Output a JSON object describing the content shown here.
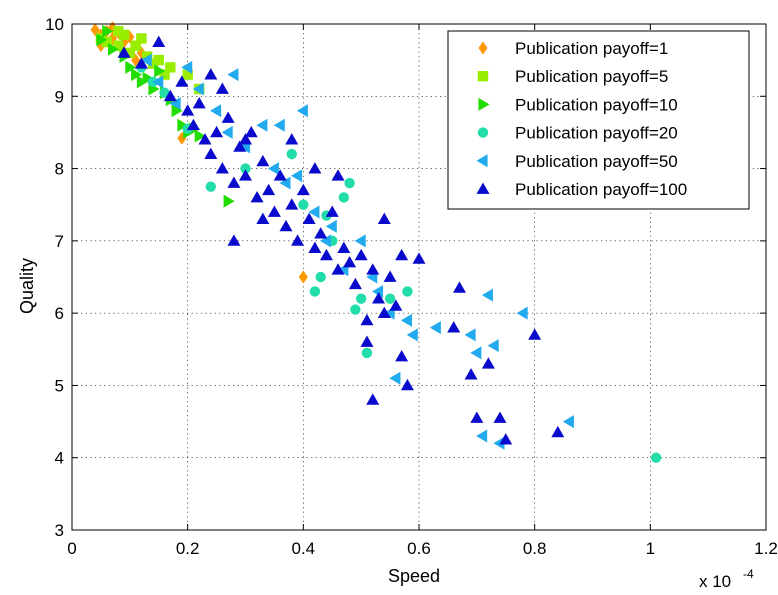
{
  "chart_data": {
    "type": "scatter",
    "xlabel": "Speed",
    "ylabel": "Quality",
    "x_multiplier_label": "x 10",
    "x_multiplier_exp": "-4",
    "xlim": [
      0,
      1.2
    ],
    "ylim": [
      3,
      10
    ],
    "x_ticks": [
      "0",
      "0.2",
      "0.4",
      "0.6",
      "0.8",
      "1",
      "1.2"
    ],
    "y_ticks": [
      "3",
      "4",
      "5",
      "6",
      "7",
      "8",
      "9",
      "10"
    ],
    "grid": true,
    "legend_position": "top-right",
    "series": [
      {
        "name": "Publication payoff=1",
        "marker": "diamond",
        "color": "#ff9900",
        "points": [
          [
            0.04,
            9.92
          ],
          [
            0.05,
            9.85
          ],
          [
            0.06,
            9.9
          ],
          [
            0.07,
            9.8
          ],
          [
            0.08,
            9.88
          ],
          [
            0.09,
            9.75
          ],
          [
            0.1,
            9.82
          ],
          [
            0.05,
            9.7
          ],
          [
            0.12,
            9.6
          ],
          [
            0.19,
            8.42
          ],
          [
            0.4,
            6.5
          ],
          [
            0.07,
            9.95
          ],
          [
            0.11,
            9.5
          ]
        ]
      },
      {
        "name": "Publication payoff=5",
        "marker": "square",
        "color": "#99ee00",
        "points": [
          [
            0.05,
            9.8
          ],
          [
            0.06,
            9.75
          ],
          [
            0.08,
            9.7
          ],
          [
            0.09,
            9.85
          ],
          [
            0.1,
            9.6
          ],
          [
            0.11,
            9.7
          ],
          [
            0.13,
            9.55
          ],
          [
            0.14,
            9.45
          ],
          [
            0.15,
            9.5
          ],
          [
            0.17,
            9.4
          ],
          [
            0.2,
            9.3
          ],
          [
            0.22,
            9.1
          ],
          [
            0.08,
            9.9
          ],
          [
            0.12,
            9.8
          ],
          [
            0.16,
            9.3
          ]
        ]
      },
      {
        "name": "Publication payoff=10",
        "marker": "triangle-right",
        "color": "#22dd00",
        "points": [
          [
            0.05,
            9.78
          ],
          [
            0.07,
            9.65
          ],
          [
            0.09,
            9.55
          ],
          [
            0.1,
            9.4
          ],
          [
            0.11,
            9.3
          ],
          [
            0.12,
            9.2
          ],
          [
            0.13,
            9.25
          ],
          [
            0.14,
            9.1
          ],
          [
            0.15,
            9.35
          ],
          [
            0.16,
            9.05
          ],
          [
            0.17,
            8.95
          ],
          [
            0.18,
            8.8
          ],
          [
            0.19,
            8.6
          ],
          [
            0.2,
            8.5
          ],
          [
            0.21,
            8.55
          ],
          [
            0.22,
            8.45
          ],
          [
            0.27,
            7.55
          ],
          [
            0.06,
            9.9
          ]
        ]
      },
      {
        "name": "Publication payoff=20",
        "marker": "circle",
        "color": "#22ddaa",
        "points": [
          [
            0.12,
            9.4
          ],
          [
            0.14,
            9.2
          ],
          [
            0.16,
            9.05
          ],
          [
            0.2,
            8.55
          ],
          [
            0.24,
            7.75
          ],
          [
            0.3,
            8.0
          ],
          [
            0.38,
            8.2
          ],
          [
            0.4,
            7.5
          ],
          [
            0.42,
            6.3
          ],
          [
            0.43,
            6.5
          ],
          [
            0.45,
            7.0
          ],
          [
            0.47,
            7.6
          ],
          [
            0.48,
            7.8
          ],
          [
            0.49,
            6.05
          ],
          [
            0.5,
            6.2
          ],
          [
            0.51,
            5.45
          ],
          [
            0.55,
            6.2
          ],
          [
            0.58,
            6.3
          ],
          [
            1.01,
            4.0
          ],
          [
            0.44,
            7.35
          ]
        ]
      },
      {
        "name": "Publication payoff=50",
        "marker": "triangle-left",
        "color": "#22aaee",
        "points": [
          [
            0.13,
            9.5
          ],
          [
            0.15,
            9.2
          ],
          [
            0.18,
            8.9
          ],
          [
            0.2,
            9.4
          ],
          [
            0.22,
            9.1
          ],
          [
            0.25,
            8.8
          ],
          [
            0.27,
            8.5
          ],
          [
            0.3,
            8.3
          ],
          [
            0.33,
            8.6
          ],
          [
            0.35,
            8.0
          ],
          [
            0.37,
            7.8
          ],
          [
            0.39,
            7.9
          ],
          [
            0.4,
            8.8
          ],
          [
            0.42,
            7.4
          ],
          [
            0.44,
            7.0
          ],
          [
            0.45,
            7.2
          ],
          [
            0.47,
            6.6
          ],
          [
            0.5,
            7.0
          ],
          [
            0.52,
            6.5
          ],
          [
            0.53,
            6.3
          ],
          [
            0.55,
            6.0
          ],
          [
            0.56,
            5.1
          ],
          [
            0.58,
            5.9
          ],
          [
            0.59,
            5.7
          ],
          [
            0.63,
            5.8
          ],
          [
            0.69,
            5.7
          ],
          [
            0.7,
            5.45
          ],
          [
            0.72,
            6.25
          ],
          [
            0.73,
            5.55
          ],
          [
            0.74,
            4.2
          ],
          [
            0.78,
            6.0
          ],
          [
            0.86,
            4.5
          ],
          [
            0.71,
            4.3
          ],
          [
            0.36,
            8.6
          ],
          [
            0.28,
            9.3
          ]
        ]
      },
      {
        "name": "Publication payoff=100",
        "marker": "triangle-up",
        "color": "#0a0acc",
        "points": [
          [
            0.09,
            9.6
          ],
          [
            0.12,
            9.45
          ],
          [
            0.15,
            9.75
          ],
          [
            0.17,
            9.0
          ],
          [
            0.19,
            9.2
          ],
          [
            0.2,
            8.8
          ],
          [
            0.21,
            8.6
          ],
          [
            0.22,
            8.9
          ],
          [
            0.23,
            8.4
          ],
          [
            0.24,
            8.2
          ],
          [
            0.25,
            8.5
          ],
          [
            0.26,
            8.0
          ],
          [
            0.27,
            8.7
          ],
          [
            0.28,
            7.8
          ],
          [
            0.29,
            8.3
          ],
          [
            0.3,
            7.9
          ],
          [
            0.31,
            8.5
          ],
          [
            0.32,
            7.6
          ],
          [
            0.33,
            8.1
          ],
          [
            0.34,
            7.7
          ],
          [
            0.35,
            7.4
          ],
          [
            0.36,
            7.9
          ],
          [
            0.37,
            7.2
          ],
          [
            0.38,
            7.5
          ],
          [
            0.39,
            7.0
          ],
          [
            0.4,
            7.7
          ],
          [
            0.41,
            7.3
          ],
          [
            0.42,
            6.9
          ],
          [
            0.43,
            7.1
          ],
          [
            0.44,
            6.8
          ],
          [
            0.45,
            7.4
          ],
          [
            0.46,
            6.6
          ],
          [
            0.47,
            6.9
          ],
          [
            0.48,
            6.7
          ],
          [
            0.49,
            6.4
          ],
          [
            0.5,
            6.8
          ],
          [
            0.51,
            5.9
          ],
          [
            0.52,
            6.6
          ],
          [
            0.53,
            6.2
          ],
          [
            0.54,
            6.0
          ],
          [
            0.55,
            6.5
          ],
          [
            0.56,
            6.1
          ],
          [
            0.57,
            6.8
          ],
          [
            0.58,
            5.0
          ],
          [
            0.6,
            6.75
          ],
          [
            0.52,
            4.8
          ],
          [
            0.51,
            5.6
          ],
          [
            0.57,
            5.4
          ],
          [
            0.66,
            5.8
          ],
          [
            0.67,
            6.35
          ],
          [
            0.69,
            5.15
          ],
          [
            0.7,
            4.55
          ],
          [
            0.72,
            5.3
          ],
          [
            0.74,
            4.55
          ],
          [
            0.75,
            4.25
          ],
          [
            0.8,
            5.7
          ],
          [
            0.84,
            4.35
          ],
          [
            0.28,
            7.0
          ],
          [
            0.54,
            7.3
          ],
          [
            0.3,
            8.4
          ],
          [
            0.26,
            9.1
          ],
          [
            0.24,
            9.3
          ],
          [
            0.42,
            8.0
          ],
          [
            0.46,
            7.9
          ],
          [
            0.38,
            8.4
          ],
          [
            0.33,
            7.3
          ]
        ]
      }
    ]
  }
}
